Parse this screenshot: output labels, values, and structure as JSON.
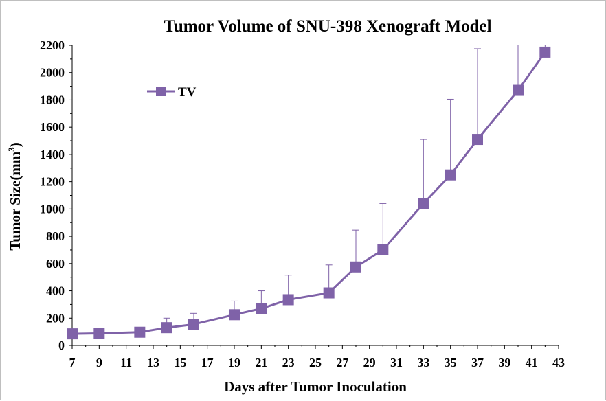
{
  "chart_data": {
    "type": "line",
    "title": "Tumor Volume of SNU-398 Xenograft Model",
    "xlabel": "Days after Tumor Inoculation",
    "ylabel_main": "Tumor Size(mm",
    "ylabel_sup": "3",
    "ylabel_close": ")",
    "xlim": [
      7,
      43
    ],
    "ylim": [
      0,
      2200
    ],
    "xticks": [
      7,
      9,
      11,
      13,
      15,
      17,
      19,
      21,
      23,
      25,
      27,
      29,
      31,
      33,
      35,
      37,
      39,
      41,
      43
    ],
    "yticks": [
      0,
      200,
      400,
      600,
      800,
      1000,
      1200,
      1400,
      1600,
      1800,
      2000,
      2200
    ],
    "grid": false,
    "legend_position": "top-left",
    "series": [
      {
        "name": "TV",
        "color": "#7f62a8",
        "marker": "square",
        "x": [
          7,
          9,
          12,
          14,
          16,
          19,
          21,
          23,
          26,
          28,
          30,
          33,
          35,
          37,
          40,
          42
        ],
        "y": [
          85,
          88,
          97,
          130,
          155,
          225,
          270,
          335,
          385,
          575,
          700,
          1040,
          1250,
          1510,
          1870,
          2150
        ],
        "error_upper": [
          null,
          null,
          null,
          200,
          235,
          325,
          400,
          515,
          590,
          845,
          1040,
          1510,
          1805,
          2175,
          2250,
          2250
        ]
      }
    ]
  }
}
